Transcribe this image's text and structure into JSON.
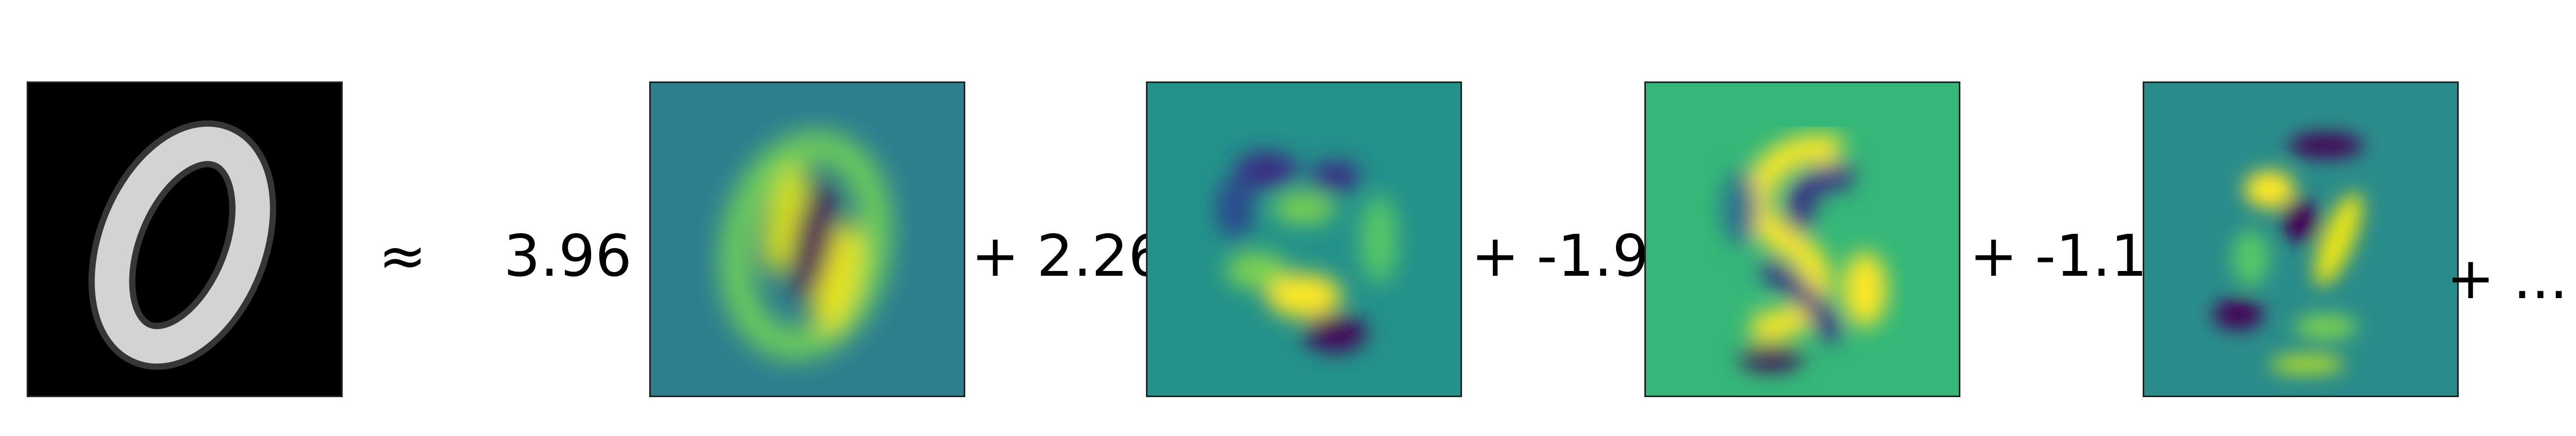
{
  "equation": {
    "approx": "≈",
    "coefficients": [
      "3.96",
      "2.26",
      "-1.9",
      "-1.1"
    ],
    "plus": "+",
    "ellipsis": "+ ..."
  },
  "colors": {
    "background": "#ffffff",
    "input_bg": "#000000",
    "viridis_dark": "#440154",
    "viridis_mid": "#21918c",
    "viridis_yellow": "#fde725"
  }
}
